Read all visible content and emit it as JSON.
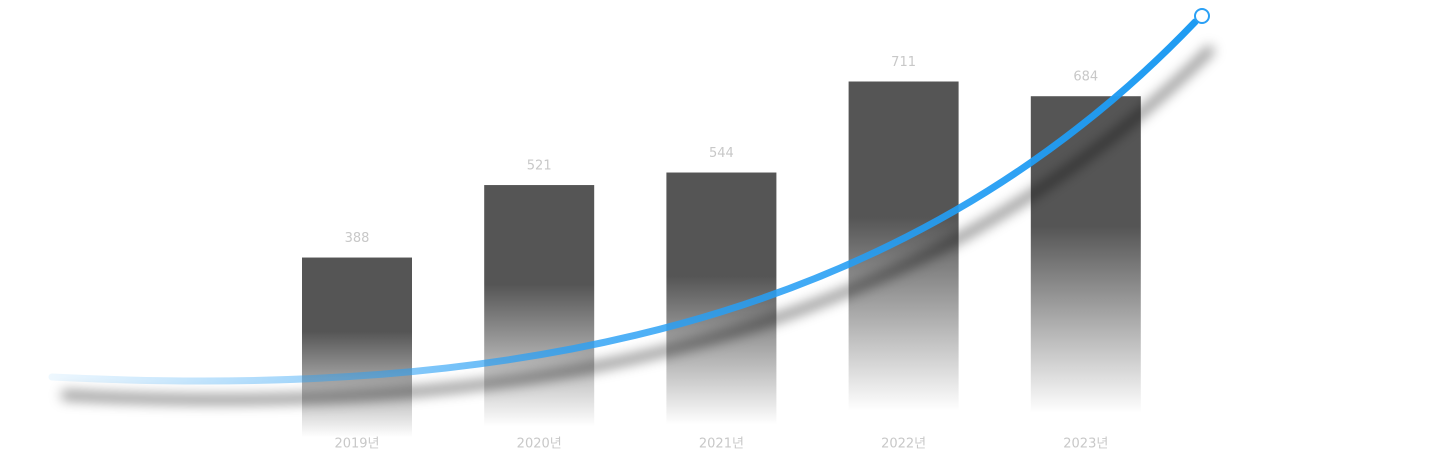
{
  "chart_data": {
    "type": "bar",
    "categories": [
      "2019년",
      "2020년",
      "2021년",
      "2022년",
      "2023년"
    ],
    "values": [
      388,
      521,
      544,
      711,
      684
    ],
    "color": "#555555",
    "ylim": [
      0,
      800
    ]
  }
}
